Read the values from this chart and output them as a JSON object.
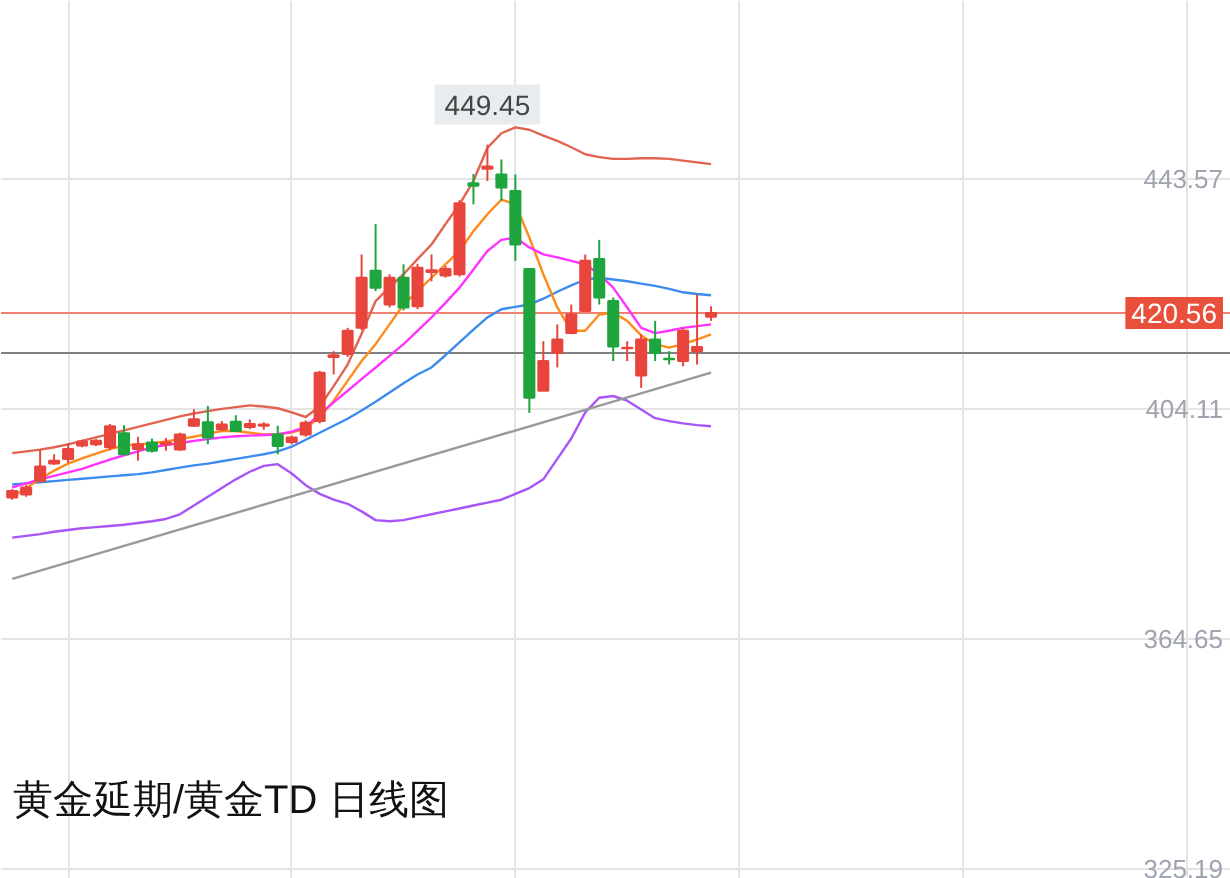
{
  "chart_data": {
    "type": "candlestick",
    "title": "黄金延期/黄金TD 日线图",
    "categories": [
      null,
      null,
      null,
      null,
      null,
      null,
      null,
      null,
      null,
      null,
      null,
      null,
      null,
      null,
      null,
      null,
      null,
      null,
      null,
      null,
      null,
      null,
      null,
      null,
      null,
      null,
      null,
      null,
      null,
      null,
      null,
      null,
      null,
      null,
      null,
      null,
      null,
      null,
      null,
      null,
      null,
      null,
      null,
      null,
      null,
      null,
      null,
      null,
      null,
      null,
      null
    ],
    "ohlc": [
      [
        388.9,
        390.3,
        388.5,
        390.0
      ],
      [
        389.4,
        391.0,
        389.0,
        390.6
      ],
      [
        391.7,
        397.2,
        391.5,
        394.2
      ],
      [
        394.7,
        396.3,
        394.5,
        395.2
      ],
      [
        395.5,
        398.2,
        394.8,
        397.2
      ],
      [
        397.8,
        398.8,
        397.5,
        398.5
      ],
      [
        398.0,
        398.9,
        397.7,
        398.6
      ],
      [
        397.5,
        401.5,
        397.0,
        401.1
      ],
      [
        399.9,
        401.3,
        396.2,
        396.3
      ],
      [
        397.2,
        399.3,
        395.2,
        398.0
      ],
      [
        398.3,
        399.0,
        396.6,
        396.9
      ],
      [
        398.0,
        399.1,
        396.9,
        398.3
      ],
      [
        397.1,
        400.0,
        396.9,
        399.7
      ],
      [
        401.2,
        404.0,
        401.0,
        402.3
      ],
      [
        401.8,
        404.6,
        398.0,
        399.2
      ],
      [
        400.6,
        402.0,
        400.3,
        401.4
      ],
      [
        401.9,
        403.0,
        400.1,
        400.3
      ],
      [
        401.0,
        402.3,
        400.6,
        401.5
      ],
      [
        401.2,
        401.8,
        400.5,
        401.4
      ],
      [
        399.7,
        401.2,
        396.3,
        397.7
      ],
      [
        398.4,
        399.5,
        398.0,
        399.2
      ],
      [
        399.7,
        402.1,
        399.3,
        401.7
      ],
      [
        402.0,
        410.6,
        401.6,
        410.3
      ],
      [
        413.0,
        414.0,
        410.0,
        413.3
      ],
      [
        413.5,
        418.0,
        413.0,
        417.5
      ],
      [
        418.0,
        430.6,
        417.6,
        426.6
      ],
      [
        427.8,
        435.8,
        424.3,
        424.9
      ],
      [
        422.0,
        427.2,
        421.5,
        426.6
      ],
      [
        426.6,
        428.9,
        421.0,
        421.5
      ],
      [
        421.7,
        429.0,
        421.2,
        428.3
      ],
      [
        427.6,
        430.6,
        426.0,
        427.9
      ],
      [
        427.0,
        428.6,
        426.6,
        428.1
      ],
      [
        427.2,
        439.9,
        426.8,
        439.4
      ],
      [
        442.8,
        444.4,
        439.2,
        442.4
      ],
      [
        445.3,
        449.45,
        443.2,
        445.7
      ],
      [
        444.3,
        446.9,
        439.8,
        442.1
      ],
      [
        441.5,
        444.3,
        429.5,
        432.3
      ],
      [
        428.1,
        428.1,
        403.4,
        406.0
      ],
      [
        407.2,
        415.7,
        407.2,
        412.3
      ],
      [
        413.7,
        418.6,
        411.2,
        416.0
      ],
      [
        417.1,
        422.0,
        416.9,
        420.3
      ],
      [
        420.9,
        430.6,
        420.9,
        429.5
      ],
      [
        429.8,
        433.1,
        422.0,
        423.2
      ],
      [
        422.6,
        423.2,
        412.3,
        414.8
      ],
      [
        414.5,
        415.7,
        412.3,
        414.6
      ],
      [
        409.8,
        416.9,
        407.7,
        416.0
      ],
      [
        416.0,
        419.2,
        412.3,
        413.7
      ],
      [
        412.7,
        414.0,
        411.7,
        412.6
      ],
      [
        412.3,
        418.0,
        411.4,
        417.5
      ],
      [
        414.0,
        423.8,
        411.7,
        414.7
      ],
      [
        419.9,
        421.7,
        419.2,
        420.56
      ]
    ],
    "colors": [
      "#e8453c",
      "#e8453c",
      "#e8453c",
      "#e8453c",
      "#e8453c",
      "#e8453c",
      "#e8453c",
      "#e8453c",
      "#1fa53e",
      "#e8453c",
      "#1fa53e",
      "#e8453c",
      "#e8453c",
      "#e8453c",
      "#1fa53e",
      "#e8453c",
      "#1fa53e",
      "#e8453c",
      "#e8453c",
      "#1fa53e",
      "#e8453c",
      "#e8453c",
      "#e8453c",
      "#e8453c",
      "#e8453c",
      "#e8453c",
      "#1fa53e",
      "#e8453c",
      "#1fa53e",
      "#e8453c",
      "#e8453c",
      "#e8453c",
      "#e8453c",
      "#1fa53e",
      "#e8453c",
      "#1fa53e",
      "#1fa53e",
      "#1fa53e",
      "#e8453c",
      "#e8453c",
      "#e8453c",
      "#e8453c",
      "#1fa53e",
      "#1fa53e",
      "#e8453c",
      "#e8453c",
      "#1fa53e",
      "#1fa53e",
      "#e8453c",
      "#e8453c",
      "#e8453c"
    ],
    "series": [
      {
        "type": "line",
        "color": "#e06450",
        "values": [
          396.5,
          396.8,
          397.1,
          397.5,
          398.0,
          398.6,
          399.2,
          399.8,
          400.4,
          401.0,
          401.6,
          402.2,
          402.8,
          403.3,
          403.7,
          404.1,
          404.4,
          404.7,
          404.5,
          404.2,
          403.5,
          402.7,
          404.5,
          408.0,
          411.7,
          417.0,
          422.6,
          425.0,
          427.2,
          429.8,
          432.3,
          435.8,
          439.2,
          443.2,
          448.9,
          451.4,
          452.4,
          452.0,
          451.0,
          450.1,
          449.0,
          447.8,
          447.3,
          447.0,
          447.0,
          447.1,
          447.1,
          447.0,
          446.7,
          446.4,
          446.1
        ]
      },
      {
        "type": "line",
        "color": "#3c8cf0",
        "values": [
          391.1,
          391.3,
          391.5,
          391.7,
          391.9,
          392.1,
          392.3,
          392.5,
          392.7,
          392.9,
          393.2,
          393.6,
          394.0,
          394.4,
          394.7,
          395.1,
          395.5,
          395.9,
          396.3,
          396.8,
          397.6,
          398.8,
          400.0,
          401.2,
          402.4,
          403.8,
          405.3,
          406.9,
          408.5,
          410.0,
          411.2,
          413.3,
          415.5,
          417.7,
          419.8,
          421.2,
          421.6,
          422.0,
          423.0,
          424.2,
          425.3,
          426.3,
          426.6,
          426.3,
          426.0,
          425.6,
          425.2,
          424.7,
          424.1,
          423.8,
          423.6
        ]
      },
      {
        "type": "line",
        "color": "#a855f7",
        "values": [
          382.0,
          382.3,
          382.6,
          383.0,
          383.3,
          383.6,
          383.8,
          384.0,
          384.2,
          384.5,
          384.8,
          385.2,
          386.0,
          387.5,
          389.0,
          390.5,
          392.0,
          393.3,
          394.3,
          394.6,
          393.0,
          391.0,
          389.5,
          388.5,
          387.8,
          386.5,
          385.0,
          384.8,
          385.0,
          385.5,
          386.0,
          386.5,
          387.0,
          387.5,
          388.0,
          388.5,
          389.5,
          390.5,
          392.0,
          395.5,
          399.0,
          403.5,
          406.0,
          406.3,
          405.5,
          404.0,
          402.5,
          402.0,
          401.6,
          401.3,
          401.1
        ]
      },
      {
        "type": "line",
        "color": "#ff8c1a",
        "values": [
          389.0,
          390.5,
          392.0,
          393.5,
          394.7,
          395.6,
          396.4,
          397.2,
          397.8,
          398.0,
          398.2,
          398.5,
          398.9,
          399.3,
          399.8,
          400.3,
          400.3,
          400.0,
          399.7,
          399.8,
          400.0,
          400.8,
          402.6,
          405.5,
          408.9,
          412.3,
          415.2,
          418.6,
          422.0,
          424.3,
          426.6,
          428.9,
          431.2,
          434.6,
          437.5,
          440.0,
          439.2,
          433.5,
          427.2,
          421.5,
          417.5,
          417.5,
          420.3,
          420.6,
          419.2,
          416.7,
          415.2,
          414.6,
          415.2,
          416.0,
          416.9
        ]
      },
      {
        "type": "line",
        "color": "#ff33ff",
        "values": [
          390.6,
          391.3,
          392.0,
          392.6,
          393.2,
          393.8,
          394.6,
          395.4,
          396.1,
          396.8,
          397.5,
          397.9,
          398.2,
          398.6,
          398.9,
          399.2,
          399.4,
          399.5,
          399.6,
          399.7,
          400.2,
          401.0,
          403.2,
          405.2,
          407.2,
          409.2,
          411.2,
          413.2,
          415.2,
          417.5,
          419.8,
          422.3,
          424.9,
          428.0,
          431.2,
          433.1,
          433.5,
          431.8,
          430.6,
          430.1,
          429.5,
          428.9,
          427.2,
          424.9,
          421.5,
          418.0,
          417.1,
          417.5,
          418.0,
          418.3,
          418.6
        ]
      },
      {
        "type": "line",
        "color": "#999999",
        "values": [
          374.9,
          null,
          null,
          null,
          null,
          null,
          null,
          null,
          null,
          null,
          null,
          null,
          null,
          null,
          null,
          null,
          null,
          null,
          null,
          null,
          null,
          null,
          null,
          null,
          null,
          null,
          null,
          null,
          null,
          null,
          null,
          null,
          null,
          null,
          null,
          null,
          null,
          null,
          null,
          null,
          null,
          null,
          null,
          null,
          null,
          null,
          null,
          null,
          null,
          null,
          410.3
        ]
      }
    ],
    "ylim": [
      323.4,
      474.1
    ],
    "yticks": [
      325.19,
      364.65,
      404.11,
      443.57
    ],
    "tick_labels": "y",
    "grid": true,
    "ref_lines": [
      {
        "axis": "y",
        "value": 420.56,
        "label": "420.56",
        "color": "#f08070"
      },
      {
        "axis": "y",
        "value": 413.7,
        "color": "#808080"
      }
    ],
    "annotations": [
      {
        "text": "449.45",
        "y": 449.45
      }
    ]
  }
}
